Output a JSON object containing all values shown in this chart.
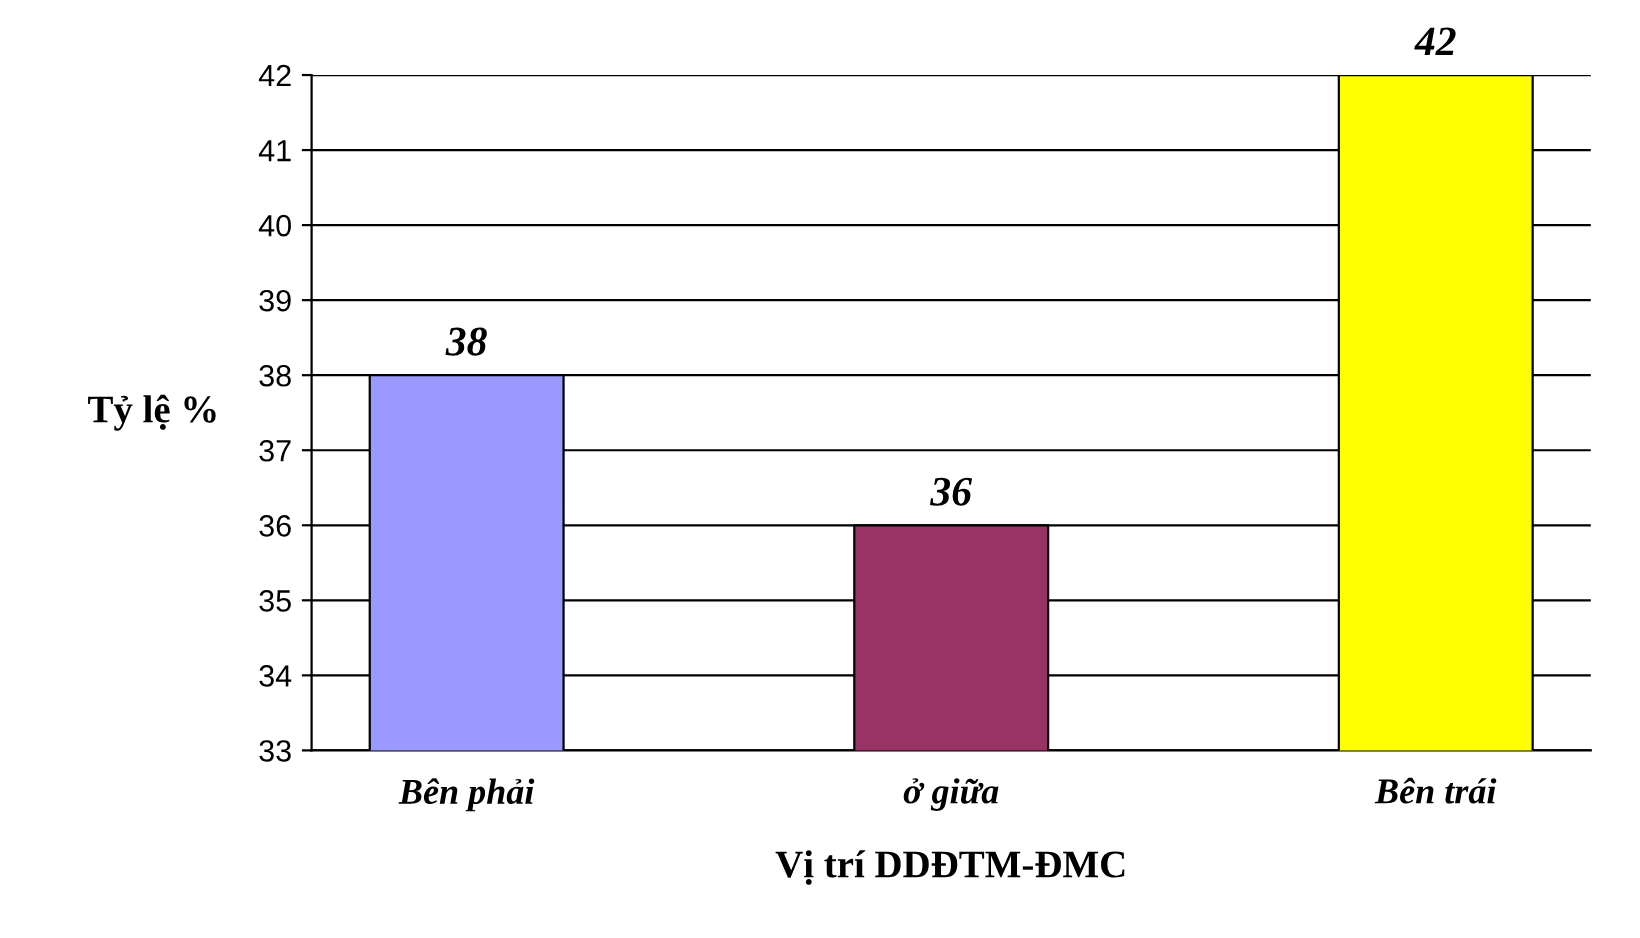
{
  "chart_data": {
    "type": "bar",
    "xlabel": "Vị trí DDĐTM-ĐMC",
    "ylabel": "Tỷ lệ %",
    "categories": [
      "Bên phải",
      "ở giữa",
      "Bên trái"
    ],
    "values": [
      38,
      36,
      42
    ],
    "colors": [
      "#9999ff",
      "#993366",
      "#ffff00"
    ],
    "ylim": [
      33,
      42
    ],
    "yticks": [
      33,
      34,
      35,
      36,
      37,
      38,
      39,
      40,
      41,
      42
    ],
    "grid": "y",
    "data_labels": true
  }
}
